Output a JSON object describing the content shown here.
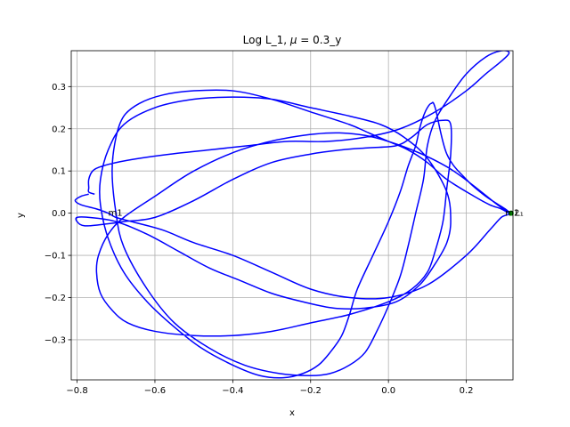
{
  "chart_data": {
    "type": "line",
    "title_prefix": "Log L_1, ",
    "title_mu": "μ",
    "title_suffix": " = 0.3_y",
    "xlabel": "x",
    "ylabel": "y",
    "xlim": [
      -0.815,
      0.32
    ],
    "ylim": [
      -0.395,
      0.385
    ],
    "xticks": [
      -0.8,
      -0.6,
      -0.4,
      -0.2,
      0.0,
      0.2
    ],
    "xtick_labels": [
      "−0.8",
      "−0.6",
      "−0.4",
      "−0.2",
      "0.0",
      "0.2"
    ],
    "yticks": [
      -0.3,
      -0.2,
      -0.1,
      0.0,
      0.1,
      0.2,
      0.3
    ],
    "ytick_labels": [
      "−0.3",
      "−0.2",
      "−0.1",
      "0.0",
      "0.1",
      "0.2",
      "0.3"
    ],
    "grid": true,
    "series": [
      {
        "color": "#0000ff",
        "x": [
          -0.77,
          -0.79,
          -0.805,
          -0.79,
          -0.75,
          -0.72,
          -0.7,
          -0.66,
          -0.58,
          -0.5,
          -0.4,
          -0.3,
          -0.2,
          -0.1,
          0.0,
          0.1,
          0.2,
          0.26,
          0.29,
          0.31,
          0.28,
          0.15,
          0.0,
          -0.12,
          -0.25,
          -0.38,
          -0.5,
          -0.6,
          -0.68,
          -0.72,
          -0.745,
          -0.75,
          -0.74,
          -0.71,
          -0.67,
          -0.6,
          -0.5,
          -0.4,
          -0.3,
          -0.2,
          -0.1,
          0.0,
          0.06,
          0.1,
          0.12,
          0.14,
          0.15,
          0.16,
          0.16,
          0.14,
          0.1,
          0.06,
          0.02,
          -0.05,
          -0.12,
          -0.2,
          -0.3,
          -0.4,
          -0.5,
          -0.6,
          -0.68,
          -0.72,
          -0.78,
          -0.8,
          -0.8,
          -0.77,
          -0.7,
          -0.62,
          -0.54,
          -0.46,
          -0.38,
          -0.3,
          -0.22,
          -0.14,
          -0.06,
          0.02,
          0.08,
          0.12,
          0.15,
          0.16,
          0.15,
          0.1,
          0.04,
          -0.02,
          -0.1,
          -0.2,
          -0.3,
          -0.4,
          -0.5,
          -0.6,
          -0.68,
          -0.72,
          -0.74,
          -0.74,
          -0.72,
          -0.68,
          -0.62,
          -0.55,
          -0.48,
          -0.4,
          -0.33,
          -0.27,
          -0.22,
          -0.18,
          -0.15,
          -0.12,
          -0.1,
          -0.08,
          -0.04,
          0.0,
          0.03,
          0.05,
          0.07,
          0.08,
          0.09,
          0.1,
          0.11,
          0.12,
          0.15,
          0.2,
          0.25,
          0.3,
          0.31,
          0.29,
          0.26,
          0.22,
          0.15,
          0.1,
          0.05,
          0.0,
          -0.05,
          -0.1,
          -0.2,
          -0.3,
          -0.4,
          -0.5,
          -0.58,
          -0.64,
          -0.68,
          -0.7,
          -0.71,
          -0.7,
          -0.68,
          -0.62,
          -0.55,
          -0.46,
          -0.37,
          -0.28,
          -0.2,
          -0.15,
          -0.1,
          -0.06,
          -0.03,
          0.0,
          0.03,
          0.05,
          0.07,
          0.09,
          0.1,
          0.12,
          0.16,
          0.2,
          0.25,
          0.29,
          0.31,
          0.29,
          0.25,
          0.2,
          0.12,
          0.03,
          -0.06,
          -0.16,
          -0.26,
          -0.36,
          -0.46,
          -0.56,
          -0.64,
          -0.7,
          -0.74,
          -0.76,
          -0.77,
          -0.77,
          -0.77,
          -0.755
        ],
        "y": [
          0.045,
          0.04,
          0.03,
          0.02,
          0.01,
          0.0,
          -0.01,
          -0.02,
          -0.04,
          -0.07,
          -0.1,
          -0.14,
          -0.18,
          -0.2,
          -0.2,
          -0.17,
          -0.1,
          -0.04,
          -0.01,
          0.0,
          0.02,
          0.11,
          0.17,
          0.19,
          0.18,
          0.15,
          0.1,
          0.04,
          -0.01,
          -0.05,
          -0.1,
          -0.14,
          -0.19,
          -0.23,
          -0.26,
          -0.28,
          -0.29,
          -0.29,
          -0.28,
          -0.26,
          -0.24,
          -0.21,
          -0.18,
          -0.14,
          -0.09,
          -0.02,
          0.06,
          0.14,
          0.21,
          0.22,
          0.21,
          0.18,
          0.16,
          0.155,
          0.15,
          0.14,
          0.12,
          0.08,
          0.03,
          -0.01,
          -0.02,
          -0.025,
          -0.03,
          -0.02,
          -0.01,
          -0.01,
          -0.02,
          -0.05,
          -0.09,
          -0.13,
          -0.16,
          -0.19,
          -0.21,
          -0.225,
          -0.225,
          -0.21,
          -0.17,
          -0.12,
          -0.07,
          -0.02,
          0.05,
          0.13,
          0.18,
          0.21,
          0.23,
          0.25,
          0.27,
          0.275,
          0.27,
          0.25,
          0.21,
          0.15,
          0.08,
          0.02,
          -0.06,
          -0.14,
          -0.21,
          -0.27,
          -0.32,
          -0.36,
          -0.385,
          -0.39,
          -0.38,
          -0.36,
          -0.33,
          -0.29,
          -0.24,
          -0.18,
          -0.1,
          -0.02,
          0.05,
          0.11,
          0.16,
          0.2,
          0.23,
          0.25,
          0.26,
          0.25,
          0.14,
          0.08,
          0.04,
          0.01,
          0.0,
          0.01,
          0.02,
          0.04,
          0.08,
          0.12,
          0.15,
          0.17,
          0.19,
          0.21,
          0.24,
          0.27,
          0.29,
          0.29,
          0.28,
          0.26,
          0.23,
          0.18,
          0.1,
          0.0,
          -0.08,
          -0.18,
          -0.26,
          -0.32,
          -0.36,
          -0.38,
          -0.385,
          -0.38,
          -0.36,
          -0.33,
          -0.28,
          -0.22,
          -0.15,
          -0.08,
          0.0,
          0.08,
          0.16,
          0.22,
          0.28,
          0.33,
          0.37,
          0.385,
          0.38,
          0.36,
          0.33,
          0.29,
          0.24,
          0.2,
          0.18,
          0.17,
          0.17,
          0.16,
          0.15,
          0.14,
          0.13,
          0.12,
          0.11,
          0.1,
          0.08,
          0.06,
          0.05,
          0.045
        ]
      }
    ],
    "annotations": [
      {
        "text": "m1",
        "x": -0.72,
        "y": 0.0
      },
      {
        "text": "m2",
        "x": 0.3,
        "y": 0.0
      },
      {
        "text": "L₁",
        "x": 0.325,
        "y": 0.0
      }
    ],
    "markers": [
      {
        "x": 0.315,
        "y": 0.0,
        "color": "#008000"
      }
    ]
  }
}
